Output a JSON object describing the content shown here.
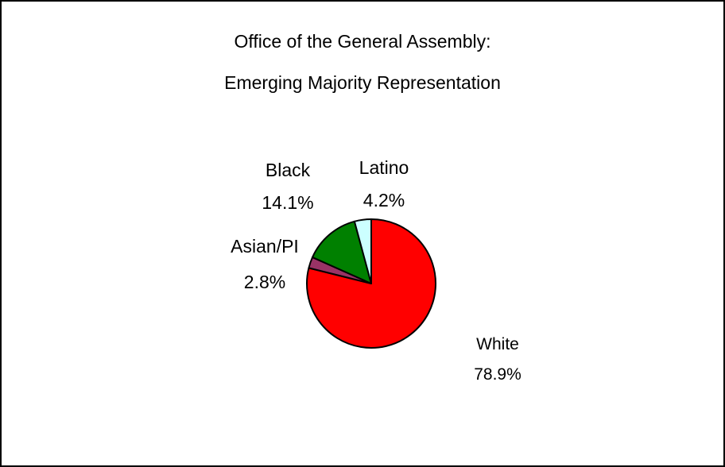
{
  "chart_data": {
    "type": "pie",
    "title": "Office of the General Assembly:",
    "subtitle": "Emerging Majority Representation",
    "slices": [
      {
        "label": "White",
        "value": 78.9,
        "display": "78.9%",
        "color": "#ff0000"
      },
      {
        "label": "Asian/PI",
        "value": 2.8,
        "display": "2.8%",
        "color": "#993366"
      },
      {
        "label": "Black",
        "value": 14.1,
        "display": "14.1%",
        "color": "#008000"
      },
      {
        "label": "Latino",
        "value": 4.2,
        "display": "4.2%",
        "color": "#ccffff"
      }
    ],
    "start_angle_deg": 0,
    "direction": "clockwise",
    "legend": "none"
  }
}
